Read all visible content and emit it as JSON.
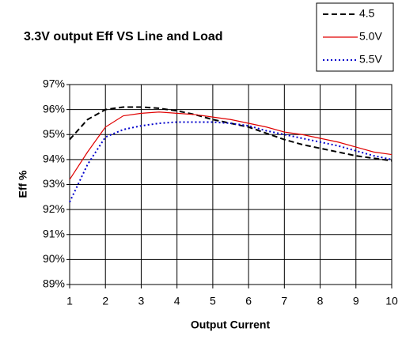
{
  "chart_data": {
    "type": "line",
    "title": "3.3V output Eff VS Line and Load",
    "x_label": "Output Current",
    "y_label": "Eff %",
    "x": [
      1,
      1.5,
      2,
      2.5,
      3,
      3.5,
      4,
      4.5,
      5,
      5.5,
      6,
      6.5,
      7,
      7.5,
      8,
      8.5,
      9,
      9.5,
      10
    ],
    "series": [
      {
        "name": "4.5",
        "color": "#000000",
        "style": "dashed",
        "values": [
          94.8,
          95.6,
          96.0,
          96.1,
          96.1,
          96.05,
          95.95,
          95.8,
          95.6,
          95.45,
          95.3,
          95.05,
          94.8,
          94.6,
          94.45,
          94.3,
          94.15,
          94.05,
          93.95
        ]
      },
      {
        "name": "5.0V",
        "color": "#e00000",
        "style": "solid",
        "values": [
          93.2,
          94.3,
          95.3,
          95.75,
          95.85,
          95.9,
          95.85,
          95.8,
          95.7,
          95.6,
          95.45,
          95.3,
          95.1,
          95.0,
          94.85,
          94.7,
          94.5,
          94.3,
          94.2
        ]
      },
      {
        "name": "5.5V",
        "color": "#0000cc",
        "style": "dotted",
        "values": [
          92.3,
          93.8,
          94.9,
          95.2,
          95.35,
          95.45,
          95.5,
          95.5,
          95.5,
          95.45,
          95.35,
          95.15,
          95.0,
          94.85,
          94.7,
          94.55,
          94.35,
          94.15,
          94.0
        ]
      }
    ],
    "xlim": [
      1,
      10
    ],
    "xticks": [
      1,
      2,
      3,
      4,
      5,
      6,
      7,
      8,
      9,
      10
    ],
    "ylim": [
      89,
      97
    ],
    "yticks": [
      {
        "value": 89,
        "label": "89%"
      },
      {
        "value": 90,
        "label": "90%"
      },
      {
        "value": 91,
        "label": "91%"
      },
      {
        "value": 92,
        "label": "92%"
      },
      {
        "value": 93,
        "label": "93%"
      },
      {
        "value": 94,
        "label": "94%"
      },
      {
        "value": 95,
        "label": "95%"
      },
      {
        "value": 96,
        "label": "96%"
      },
      {
        "value": 97,
        "label": "97%"
      }
    ],
    "grid": true,
    "legend": "top-right"
  }
}
